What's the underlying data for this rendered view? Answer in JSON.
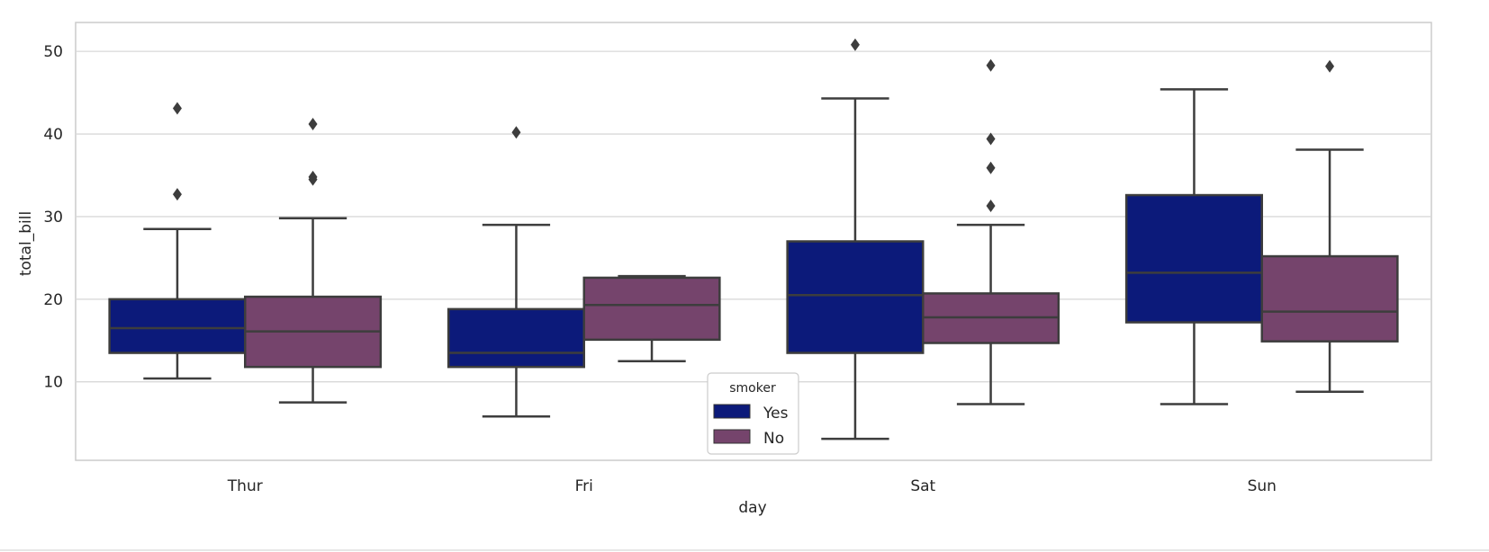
{
  "chart_data": {
    "type": "box",
    "xlabel": "day",
    "ylabel": "total_bill",
    "ylim": [
      0.5,
      53.5
    ],
    "yticks": [
      10,
      20,
      30,
      40,
      50
    ],
    "grid": true,
    "categories": [
      "Thur",
      "Fri",
      "Sat",
      "Sun"
    ],
    "legend": {
      "title": "smoker",
      "placement": "lower center"
    },
    "series": [
      {
        "name": "Yes",
        "color": "#0c1a7a",
        "boxes": [
          {
            "category": "Thur",
            "whisker_low": 10.4,
            "q1": 13.5,
            "median": 16.5,
            "q3": 20.0,
            "whisker_high": 28.5,
            "outliers": [
              32.7,
              43.1
            ]
          },
          {
            "category": "Fri",
            "whisker_low": 5.8,
            "q1": 11.8,
            "median": 13.5,
            "q3": 18.8,
            "whisker_high": 29.0,
            "outliers": [
              40.2
            ]
          },
          {
            "category": "Sat",
            "whisker_low": 3.1,
            "q1": 13.5,
            "median": 20.5,
            "q3": 27.0,
            "whisker_high": 44.3,
            "outliers": [
              50.8
            ]
          },
          {
            "category": "Sun",
            "whisker_low": 7.3,
            "q1": 17.2,
            "median": 23.2,
            "q3": 32.6,
            "whisker_high": 45.4,
            "outliers": []
          }
        ]
      },
      {
        "name": "No",
        "color": "#75446c",
        "boxes": [
          {
            "category": "Thur",
            "whisker_low": 7.5,
            "q1": 11.8,
            "median": 16.1,
            "q3": 20.3,
            "whisker_high": 29.8,
            "outliers": [
              34.5,
              34.8,
              41.2
            ]
          },
          {
            "category": "Fri",
            "whisker_low": 12.5,
            "q1": 15.1,
            "median": 19.3,
            "q3": 22.6,
            "whisker_high": 22.8,
            "outliers": []
          },
          {
            "category": "Sat",
            "whisker_low": 7.3,
            "q1": 14.7,
            "median": 17.8,
            "q3": 20.7,
            "whisker_high": 29.0,
            "outliers": [
              31.3,
              35.9,
              39.4,
              48.3
            ]
          },
          {
            "category": "Sun",
            "whisker_low": 8.8,
            "q1": 14.9,
            "median": 18.5,
            "q3": 25.2,
            "whisker_high": 38.1,
            "outliers": [
              48.2
            ]
          }
        ]
      }
    ]
  }
}
